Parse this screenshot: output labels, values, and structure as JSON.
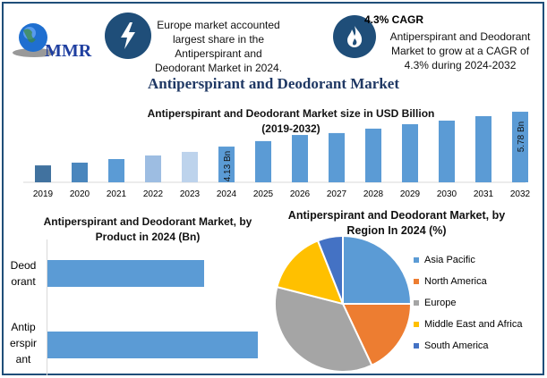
{
  "header": {
    "logo_text": "MMR",
    "info1": {
      "icon": "lightning-icon",
      "text": "Europe market accounted largest share in the Antiperspirant and Deodorant Market in 2024."
    },
    "info2": {
      "icon": "flame-icon",
      "heading": "4.3% CAGR",
      "text": "Antiperspirant and Deodorant Market to grow at a CAGR of 4.3% during 2024-2032"
    }
  },
  "title": "Antiperspirant and Deodorant Market",
  "chart_data": [
    {
      "type": "bar",
      "title": "Antiperspirant and Deodorant Market size in USD Billion (2019-2032)",
      "categories": [
        "2019",
        "2020",
        "2021",
        "2022",
        "2023",
        "2024",
        "2025",
        "2026",
        "2027",
        "2028",
        "2029",
        "2030",
        "2031",
        "2032"
      ],
      "values": [
        3.24,
        3.37,
        3.54,
        3.71,
        3.88,
        4.13,
        4.39,
        4.68,
        4.77,
        4.98,
        5.19,
        5.36,
        5.57,
        5.78
      ],
      "data_labels": {
        "2024": "4.13 Bn",
        "2032": "5.78 Bn"
      },
      "colors": [
        "#41729f",
        "#4a86bd",
        "#5b9bd5",
        "#9dbde2",
        "#bdd3ec",
        "#5b9bd5",
        "#5b9bd5",
        "#5b9bd5",
        "#5b9bd5",
        "#5b9bd5",
        "#5b9bd5",
        "#5b9bd5",
        "#5b9bd5",
        "#5b9bd5"
      ],
      "grid": false
    },
    {
      "type": "bar",
      "orientation": "horizontal",
      "title": "Antiperspirant and Deodorant Market, by Product in 2024 (Bn)",
      "categories": [
        "Deod orant",
        "Antip erspir ant"
      ],
      "values": [
        1.76,
        2.37
      ],
      "color": "#5b9bd5"
    },
    {
      "type": "pie",
      "title": "Antiperspirant and Deodorant Market, by Region In 2024 (%)",
      "categories": [
        "Asia Pacific",
        "North America",
        "Europe",
        "Middle East and Africa",
        "South America"
      ],
      "values": [
        25,
        18,
        36,
        15,
        6
      ],
      "colors": [
        "#5b9bd5",
        "#ed7d31",
        "#a5a5a5",
        "#ffc000",
        "#4472c4"
      ],
      "legend": "right"
    }
  ]
}
